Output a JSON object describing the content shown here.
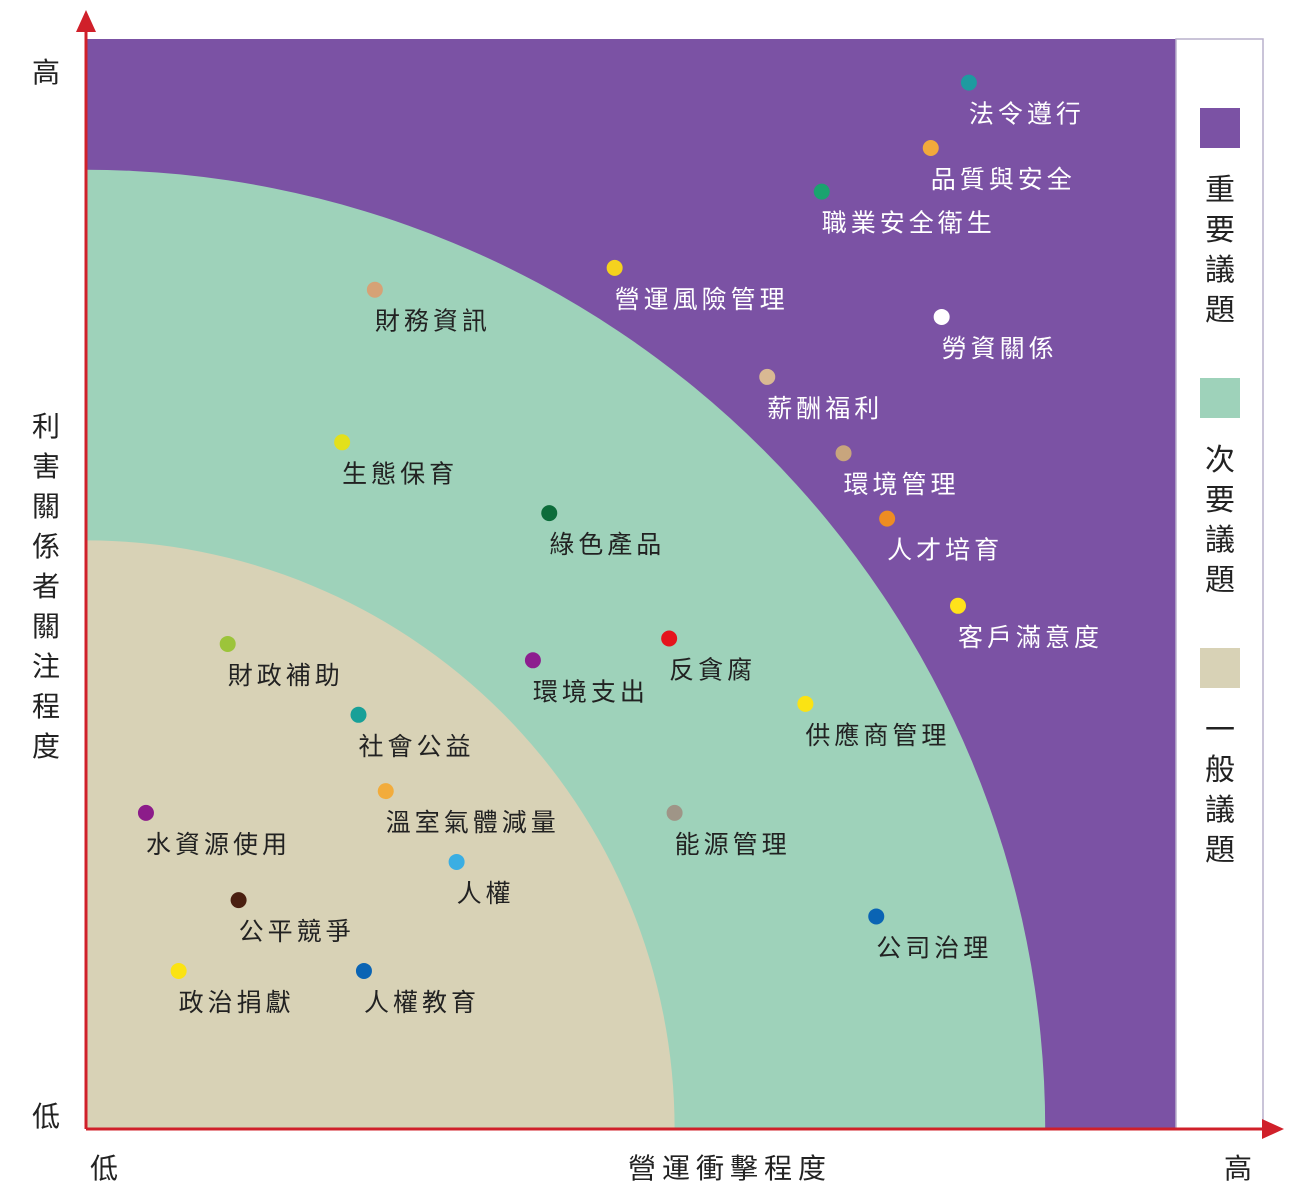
{
  "chart_data": {
    "type": "scatter",
    "title": "",
    "xlabel": "營運衝擊程度",
    "ylabel": "利害關係者關注程度",
    "x_low": "低",
    "x_high": "高",
    "y_low": "低",
    "y_high": "高",
    "xlim": [
      0,
      100
    ],
    "ylim": [
      0,
      100
    ],
    "grid": false,
    "legend_position": "right",
    "zones": [
      {
        "name": "重要議題",
        "color": "#7b52a4",
        "radius": 100
      },
      {
        "name": "次要議題",
        "color": "#9ed2ba",
        "radius": 88
      },
      {
        "name": "一般議題",
        "color": "#d8d2b6",
        "radius": 54
      }
    ],
    "points": [
      {
        "label": "法令遵行",
        "x": 81,
        "y": 96,
        "color": "#1e9aa0",
        "text_color": "#ffffff"
      },
      {
        "label": "品質與安全",
        "x": 77.5,
        "y": 90,
        "color": "#f2a93b",
        "text_color": "#ffffff"
      },
      {
        "label": "職業安全衛生",
        "x": 67.5,
        "y": 86,
        "color": "#1aa36f",
        "text_color": "#ffffff"
      },
      {
        "label": "營運風險管理",
        "x": 48.5,
        "y": 79,
        "color": "#f5d21e",
        "text_color": "#ffffff"
      },
      {
        "label": "勞資關係",
        "x": 78.5,
        "y": 74.5,
        "color": "#ffffff",
        "text_color": "#ffffff"
      },
      {
        "label": "薪酬福利",
        "x": 62.5,
        "y": 69,
        "color": "#d9b993",
        "text_color": "#ffffff"
      },
      {
        "label": "環境管理",
        "x": 69.5,
        "y": 62,
        "color": "#c8a57d",
        "text_color": "#ffffff"
      },
      {
        "label": "人才培育",
        "x": 73.5,
        "y": 56,
        "color": "#ee8c22",
        "text_color": "#ffffff"
      },
      {
        "label": "客戶滿意度",
        "x": 80,
        "y": 48,
        "color": "#ffe21a",
        "text_color": "#ffffff"
      },
      {
        "label": "財務資訊",
        "x": 26.5,
        "y": 77,
        "color": "#d6a276",
        "text_color": "#222222"
      },
      {
        "label": "生態保育",
        "x": 23.5,
        "y": 63,
        "color": "#e3e01b",
        "text_color": "#222222"
      },
      {
        "label": "綠色產品",
        "x": 42.5,
        "y": 56.5,
        "color": "#0c6c3a",
        "text_color": "#222222"
      },
      {
        "label": "反貪腐",
        "x": 53.5,
        "y": 45,
        "color": "#e5141c",
        "text_color": "#222222"
      },
      {
        "label": "環境支出",
        "x": 41,
        "y": 43,
        "color": "#8d1e8f",
        "text_color": "#222222"
      },
      {
        "label": "供應商管理",
        "x": 66,
        "y": 39,
        "color": "#fbe313",
        "text_color": "#222222"
      },
      {
        "label": "能源管理",
        "x": 54,
        "y": 29,
        "color": "#9f9587",
        "text_color": "#222222"
      },
      {
        "label": "公司治理",
        "x": 72.5,
        "y": 19.5,
        "color": "#0a64b4",
        "text_color": "#222222"
      },
      {
        "label": "財政補助",
        "x": 13,
        "y": 44.5,
        "color": "#9cc43a",
        "text_color": "#222222"
      },
      {
        "label": "社會公益",
        "x": 25,
        "y": 38,
        "color": "#18a098",
        "text_color": "#222222"
      },
      {
        "label": "溫室氣體減量",
        "x": 27.5,
        "y": 31,
        "color": "#f2ac3c",
        "text_color": "#222222"
      },
      {
        "label": "水資源使用",
        "x": 5.5,
        "y": 29,
        "color": "#8c1c8a",
        "text_color": "#222222"
      },
      {
        "label": "人權",
        "x": 34,
        "y": 24.5,
        "color": "#3aaee3",
        "text_color": "#222222"
      },
      {
        "label": "公平競爭",
        "x": 14,
        "y": 21,
        "color": "#4a1f10",
        "text_color": "#222222"
      },
      {
        "label": "政治捐獻",
        "x": 8.5,
        "y": 14.5,
        "color": "#fbe313",
        "text_color": "#222222"
      },
      {
        "label": "人權教育",
        "x": 25.5,
        "y": 14.5,
        "color": "#0a64b4",
        "text_color": "#222222"
      }
    ]
  }
}
